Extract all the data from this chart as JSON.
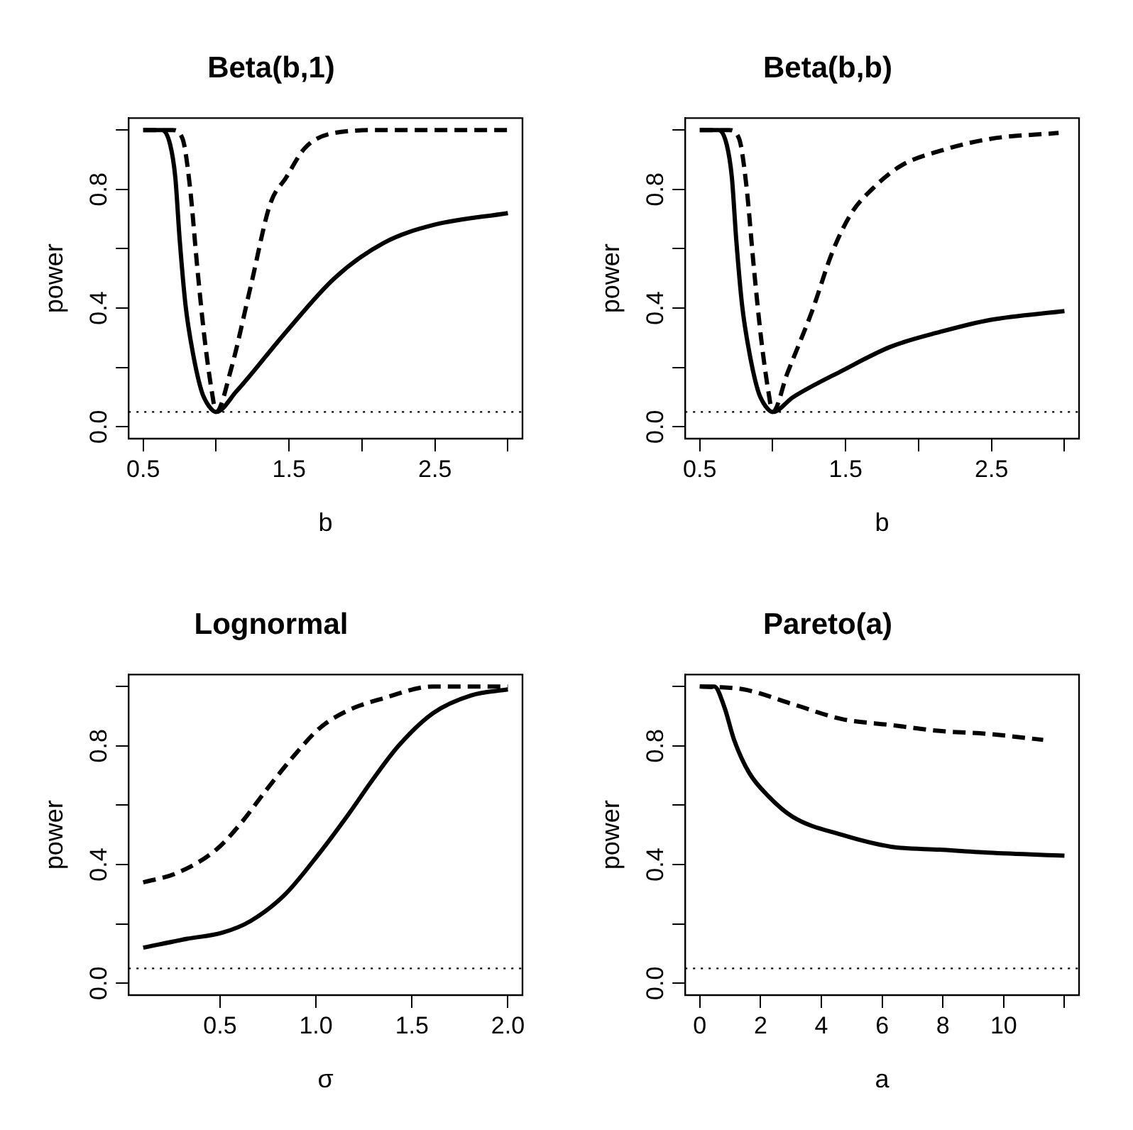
{
  "chart_data": [
    {
      "type": "line",
      "title": "Beta(b,1)",
      "xlabel": "b",
      "ylabel": "power",
      "xlim": [
        0.4,
        3.1
      ],
      "ylim": [
        -0.04,
        1.04
      ],
      "xticks": [
        0.5,
        {
          "value": 1.0,
          "label": null
        },
        1.5,
        {
          "value": 2.0,
          "label": null
        },
        2.5,
        {
          "value": 3.0,
          "label": null
        }
      ],
      "yticks": [
        {
          "value": 0,
          "label": "0.0"
        },
        {
          "value": 0.2,
          "label": null
        },
        {
          "value": 0.4,
          "label": "0.4"
        },
        {
          "value": 0.6,
          "label": null
        },
        {
          "value": 0.8,
          "label": "0.8"
        },
        {
          "value": 1.0,
          "label": null
        }
      ],
      "ref_lines": [
        {
          "axis": "y",
          "value": 0.05,
          "color": "#000000",
          "line_style": "dotted"
        }
      ],
      "series": [
        {
          "color": "#000000",
          "line_style": "solid",
          "x": [
            0.5,
            0.63,
            0.685,
            0.72,
            0.75,
            0.79,
            0.84,
            0.9,
            0.95,
            1.0,
            1.14,
            1.48,
            1.81,
            2.15,
            2.49,
            3.0
          ],
          "values": [
            1.0,
            1.0,
            0.95,
            0.84,
            0.63,
            0.41,
            0.25,
            0.12,
            0.07,
            0.05,
            0.12,
            0.32,
            0.5,
            0.62,
            0.68,
            0.72
          ]
        },
        {
          "color": "#000000",
          "line_style": "dashed",
          "x": [
            0.5,
            0.7,
            0.77,
            0.82,
            0.87,
            0.92,
            0.97,
            1.0,
            1.1,
            1.24,
            1.37,
            1.48,
            1.61,
            1.81,
            2.15,
            3.0
          ],
          "values": [
            1.0,
            1.0,
            0.97,
            0.81,
            0.54,
            0.3,
            0.12,
            0.05,
            0.19,
            0.48,
            0.75,
            0.84,
            0.94,
            0.99,
            1.0,
            1.0
          ]
        }
      ]
    },
    {
      "type": "line",
      "title": "Beta(b,b)",
      "xlabel": "b",
      "ylabel": "power",
      "xlim": [
        0.4,
        3.1
      ],
      "ylim": [
        -0.04,
        1.04
      ],
      "xticks": [
        0.5,
        {
          "value": 1.0,
          "label": null
        },
        1.5,
        {
          "value": 2.0,
          "label": null
        },
        2.5,
        {
          "value": 3.0,
          "label": null
        }
      ],
      "yticks": [
        {
          "value": 0,
          "label": "0.0"
        },
        {
          "value": 0.2,
          "label": null
        },
        {
          "value": 0.4,
          "label": "0.4"
        },
        {
          "value": 0.6,
          "label": null
        },
        {
          "value": 0.8,
          "label": "0.8"
        },
        {
          "value": 1.0,
          "label": null
        }
      ],
      "ref_lines": [
        {
          "axis": "y",
          "value": 0.05,
          "color": "#000000",
          "line_style": "dotted"
        }
      ],
      "series": [
        {
          "color": "#000000",
          "line_style": "solid",
          "x": [
            0.5,
            0.63,
            0.685,
            0.72,
            0.75,
            0.79,
            0.84,
            0.9,
            0.95,
            1.0,
            1.14,
            1.48,
            1.81,
            2.15,
            2.49,
            3.0
          ],
          "values": [
            1.0,
            1.0,
            0.95,
            0.84,
            0.63,
            0.41,
            0.25,
            0.12,
            0.07,
            0.05,
            0.1,
            0.19,
            0.27,
            0.32,
            0.36,
            0.39
          ]
        },
        {
          "color": "#000000",
          "line_style": "dashed",
          "x": [
            0.5,
            0.7,
            0.77,
            0.82,
            0.87,
            0.92,
            0.97,
            1.0,
            1.1,
            1.27,
            1.41,
            1.54,
            1.68,
            1.88,
            2.15,
            2.49,
            2.96
          ],
          "values": [
            1.0,
            1.0,
            0.97,
            0.81,
            0.54,
            0.3,
            0.12,
            0.05,
            0.18,
            0.39,
            0.59,
            0.72,
            0.8,
            0.88,
            0.93,
            0.97,
            0.99
          ]
        }
      ]
    },
    {
      "type": "line",
      "title": "Lognormal",
      "xlabel": "σ",
      "ylabel": "power",
      "xlim": [
        0.024,
        2.076
      ],
      "ylim": [
        -0.04,
        1.04
      ],
      "xticks": [
        0.5,
        {
          "value": 1.0,
          "label": "1.0"
        },
        1.5,
        {
          "value": 2.0,
          "label": "2.0"
        }
      ],
      "yticks": [
        {
          "value": 0,
          "label": "0.0"
        },
        {
          "value": 0.2,
          "label": null
        },
        {
          "value": 0.4,
          "label": "0.4"
        },
        {
          "value": 0.6,
          "label": null
        },
        {
          "value": 0.8,
          "label": "0.8"
        },
        {
          "value": 1.0,
          "label": null
        }
      ],
      "ref_lines": [
        {
          "axis": "y",
          "value": 0.05,
          "color": "#000000",
          "line_style": "dotted"
        }
      ],
      "series": [
        {
          "color": "#000000",
          "line_style": "solid",
          "x": [
            0.1,
            0.33,
            0.51,
            0.66,
            0.84,
            1.02,
            1.17,
            1.3,
            1.43,
            1.61,
            1.81,
            2.0
          ],
          "values": [
            0.12,
            0.15,
            0.17,
            0.21,
            0.3,
            0.44,
            0.57,
            0.69,
            0.8,
            0.91,
            0.97,
            0.99
          ]
        },
        {
          "color": "#000000",
          "line_style": "dashed",
          "x": [
            0.1,
            0.27,
            0.48,
            0.61,
            0.74,
            0.89,
            1.02,
            1.17,
            1.35,
            1.61,
            2.0
          ],
          "values": [
            0.34,
            0.37,
            0.45,
            0.54,
            0.65,
            0.77,
            0.86,
            0.92,
            0.96,
            1.0,
            1.0
          ]
        }
      ]
    },
    {
      "type": "line",
      "title": "Pareto(a)",
      "xlabel": "a",
      "ylabel": "power",
      "xlim": [
        -0.48,
        12.48
      ],
      "ylim": [
        -0.04,
        1.04
      ],
      "xticks": [
        0,
        2,
        4,
        6,
        8,
        10,
        {
          "value": 12,
          "label": null
        }
      ],
      "yticks": [
        {
          "value": 0,
          "label": "0.0"
        },
        {
          "value": 0.2,
          "label": null
        },
        {
          "value": 0.4,
          "label": "0.4"
        },
        {
          "value": 0.6,
          "label": null
        },
        {
          "value": 0.8,
          "label": "0.8"
        },
        {
          "value": 1.0,
          "label": null
        }
      ],
      "ref_lines": [
        {
          "axis": "y",
          "value": 0.05,
          "color": "#000000",
          "line_style": "dotted"
        }
      ],
      "series": [
        {
          "color": "#000000",
          "line_style": "solid",
          "x": [
            0,
            0.48,
            0.81,
            1.13,
            1.62,
            2.26,
            3.07,
            4.68,
            6.3,
            7.9,
            9.5,
            12
          ],
          "values": [
            1.0,
            1.0,
            0.93,
            0.82,
            0.71,
            0.63,
            0.56,
            0.5,
            0.46,
            0.45,
            0.44,
            0.43
          ]
        },
        {
          "color": "#000000",
          "line_style": "dashed",
          "x": [
            0,
            1.45,
            3.07,
            4.68,
            6.3,
            7.9,
            9.5,
            11.3
          ],
          "values": [
            1.0,
            0.99,
            0.94,
            0.89,
            0.87,
            0.85,
            0.84,
            0.82
          ]
        }
      ]
    }
  ]
}
